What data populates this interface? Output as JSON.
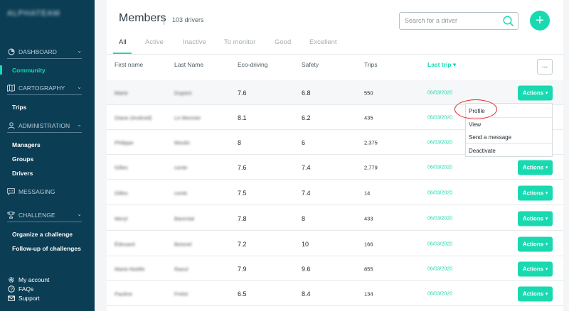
{
  "sidebar": {
    "brand": "ALPHATEAM",
    "sections": {
      "dashboard": "DASHBOARD",
      "cartography": "CARTOGRAPHY",
      "administration": "ADMINISTRATION",
      "messaging": "MESSAGING",
      "challenge": "CHALLENGE"
    },
    "items": {
      "community": "Community",
      "trips": "Trips",
      "managers": "Managers",
      "groups": "Groups",
      "drivers": "Drivers",
      "organize": "Organize a challenge",
      "followup": "Follow-up of challenges"
    },
    "footer": {
      "account": "My account",
      "faqs": "FAQs",
      "support": "Support"
    },
    "colors": {
      "background": "#0b3d54",
      "accent": "#19d9b0"
    }
  },
  "header": {
    "title": "Members",
    "count": "103 drivers",
    "search_placeholder": "Search for a driver",
    "add_label": "+"
  },
  "tabs": [
    "All",
    "Active",
    "Inactive",
    "To monitor",
    "Good",
    "Excellent"
  ],
  "table": {
    "columns": {
      "first": "First name",
      "last": "Last Name",
      "eco": "Eco-driving",
      "safety": "Safety",
      "trips": "Trips",
      "lasttrip": "Last trip ▾"
    },
    "more_label": "...",
    "actions_label": "Actions",
    "rows": [
      {
        "first": "Marie",
        "last": "Dupont",
        "eco": "7.6",
        "safety": "6.8",
        "trips": "550",
        "date": "06/03/2020"
      },
      {
        "first": "Diane (Android)",
        "last": "Le Monnier",
        "eco": "8.1",
        "safety": "6.2",
        "trips": "435",
        "date": "06/03/2020"
      },
      {
        "first": "Philippe",
        "last": "Moulin",
        "eco": "8",
        "safety": "6",
        "trips": "2,375",
        "date": "06/03/2020"
      },
      {
        "first": "Gilles",
        "last": "conte",
        "eco": "7.6",
        "safety": "7.4",
        "trips": "2,779",
        "date": "06/03/2020"
      },
      {
        "first": "Gilles",
        "last": "conte",
        "eco": "7.5",
        "safety": "7.4",
        "trips": "14",
        "date": "06/03/2020"
      },
      {
        "first": "Meryl",
        "last": "Barental",
        "eco": "7.8",
        "safety": "8",
        "trips": "433",
        "date": "06/03/2020"
      },
      {
        "first": "Édouard",
        "last": "Boisnel",
        "eco": "7.2",
        "safety": "10",
        "trips": "166",
        "date": "06/03/2020"
      },
      {
        "first": "Marie-Noëlle",
        "last": "Raoul",
        "eco": "7.9",
        "safety": "9.6",
        "trips": "855",
        "date": "06/03/2020"
      },
      {
        "first": "Pauline",
        "last": "Frelot",
        "eco": "6.5",
        "safety": "8.4",
        "trips": "134",
        "date": "06/03/2020"
      }
    ]
  },
  "dropdown": [
    "Profile",
    "View",
    "Send a message",
    "Deactivate"
  ]
}
